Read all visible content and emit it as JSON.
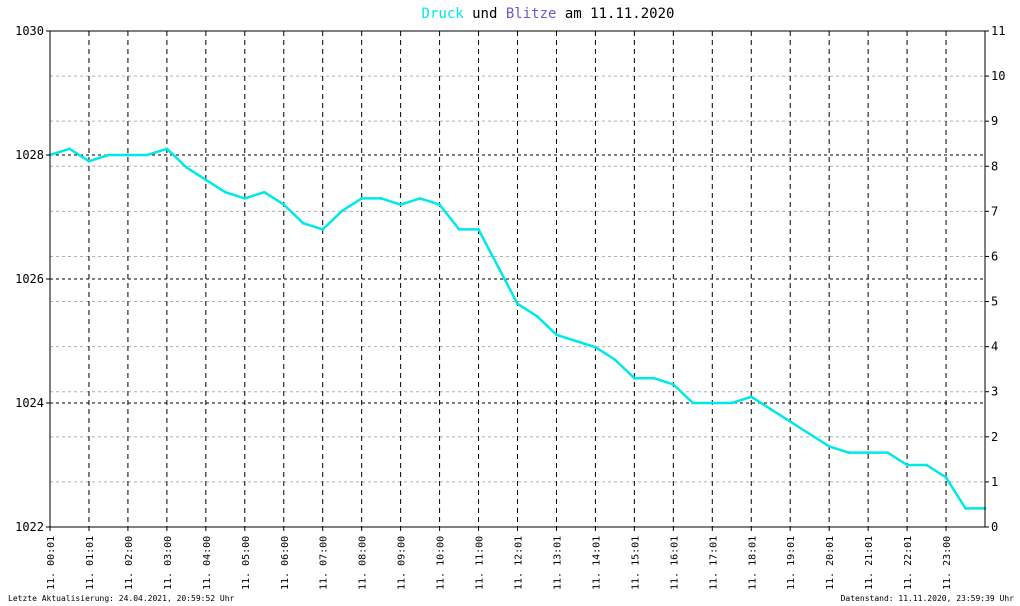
{
  "title": {
    "part1": "Druck",
    "part2": " und ",
    "part3": "Blitze",
    "part4": " am 11.11.2020"
  },
  "colors": {
    "druck": "#00e8e8",
    "blitze": "#6a5acd",
    "text": "#000000",
    "grid_major": "#000000",
    "grid_minor": "#b0b0b0"
  },
  "footer": {
    "left": "Letzte Aktualisierung: 24.04.2021, 20:59:52 Uhr",
    "right": "Datenstand: 11.11.2020, 23:59:39 Uhr"
  },
  "chart_data": {
    "type": "line",
    "title": "Druck und Blitze am 11.11.2020",
    "y_left": {
      "range": [
        1022,
        1030
      ],
      "ticks": [
        "1022",
        "1024",
        "1026",
        "1028",
        "1030"
      ]
    },
    "y_right": {
      "range": [
        0,
        11
      ],
      "ticks": [
        "0",
        "1",
        "2",
        "3",
        "4",
        "5",
        "6",
        "7",
        "8",
        "9",
        "10",
        "11"
      ]
    },
    "x": {
      "range_hours": [
        0,
        24
      ],
      "tick_labels": [
        "11. 00:01",
        "11. 01:01",
        "11. 02:00",
        "11. 03:00",
        "11. 04:00",
        "11. 05:00",
        "11. 06:00",
        "11. 07:00",
        "11. 08:00",
        "11. 09:00",
        "11. 10:00",
        "11. 11:00",
        "11. 12:01",
        "11. 13:01",
        "11. 14:01",
        "11. 15:01",
        "11. 16:01",
        "11. 17:01",
        "11. 18:01",
        "11. 19:01",
        "11. 20:01",
        "11. 21:01",
        "11. 22:01",
        "11. 23:00"
      ]
    },
    "grid": true,
    "series": [
      {
        "name": "Druck",
        "axis": "left",
        "x": [
          0,
          0.5,
          1,
          1.5,
          2,
          2.5,
          3,
          3.5,
          4,
          4.5,
          5,
          5.5,
          6,
          6.5,
          7,
          7.5,
          8,
          8.5,
          9,
          9.5,
          10,
          10.5,
          11,
          11.5,
          12,
          12.5,
          13,
          13.5,
          14,
          14.5,
          15,
          15.5,
          16,
          16.5,
          17,
          17.5,
          18,
          18.5,
          19,
          19.5,
          20,
          20.5,
          21,
          21.5,
          22,
          22.5,
          23,
          23.5,
          24
        ],
        "values": [
          1028.0,
          1028.1,
          1027.9,
          1028.0,
          1028.0,
          1028.0,
          1028.1,
          1027.8,
          1027.6,
          1027.4,
          1027.3,
          1027.4,
          1027.2,
          1026.9,
          1026.8,
          1027.1,
          1027.3,
          1027.3,
          1027.2,
          1027.3,
          1027.2,
          1026.8,
          1026.8,
          1026.2,
          1025.6,
          1025.4,
          1025.1,
          1025.0,
          1024.9,
          1024.7,
          1024.4,
          1024.4,
          1024.3,
          1024.0,
          1024.0,
          1024.0,
          1024.1,
          1023.9,
          1023.7,
          1023.5,
          1023.3,
          1023.2,
          1023.2,
          1023.2,
          1023.0,
          1023.0,
          1022.8,
          1022.3,
          1022.3
        ]
      },
      {
        "name": "Blitze",
        "axis": "right",
        "x": [],
        "values": []
      }
    ]
  }
}
